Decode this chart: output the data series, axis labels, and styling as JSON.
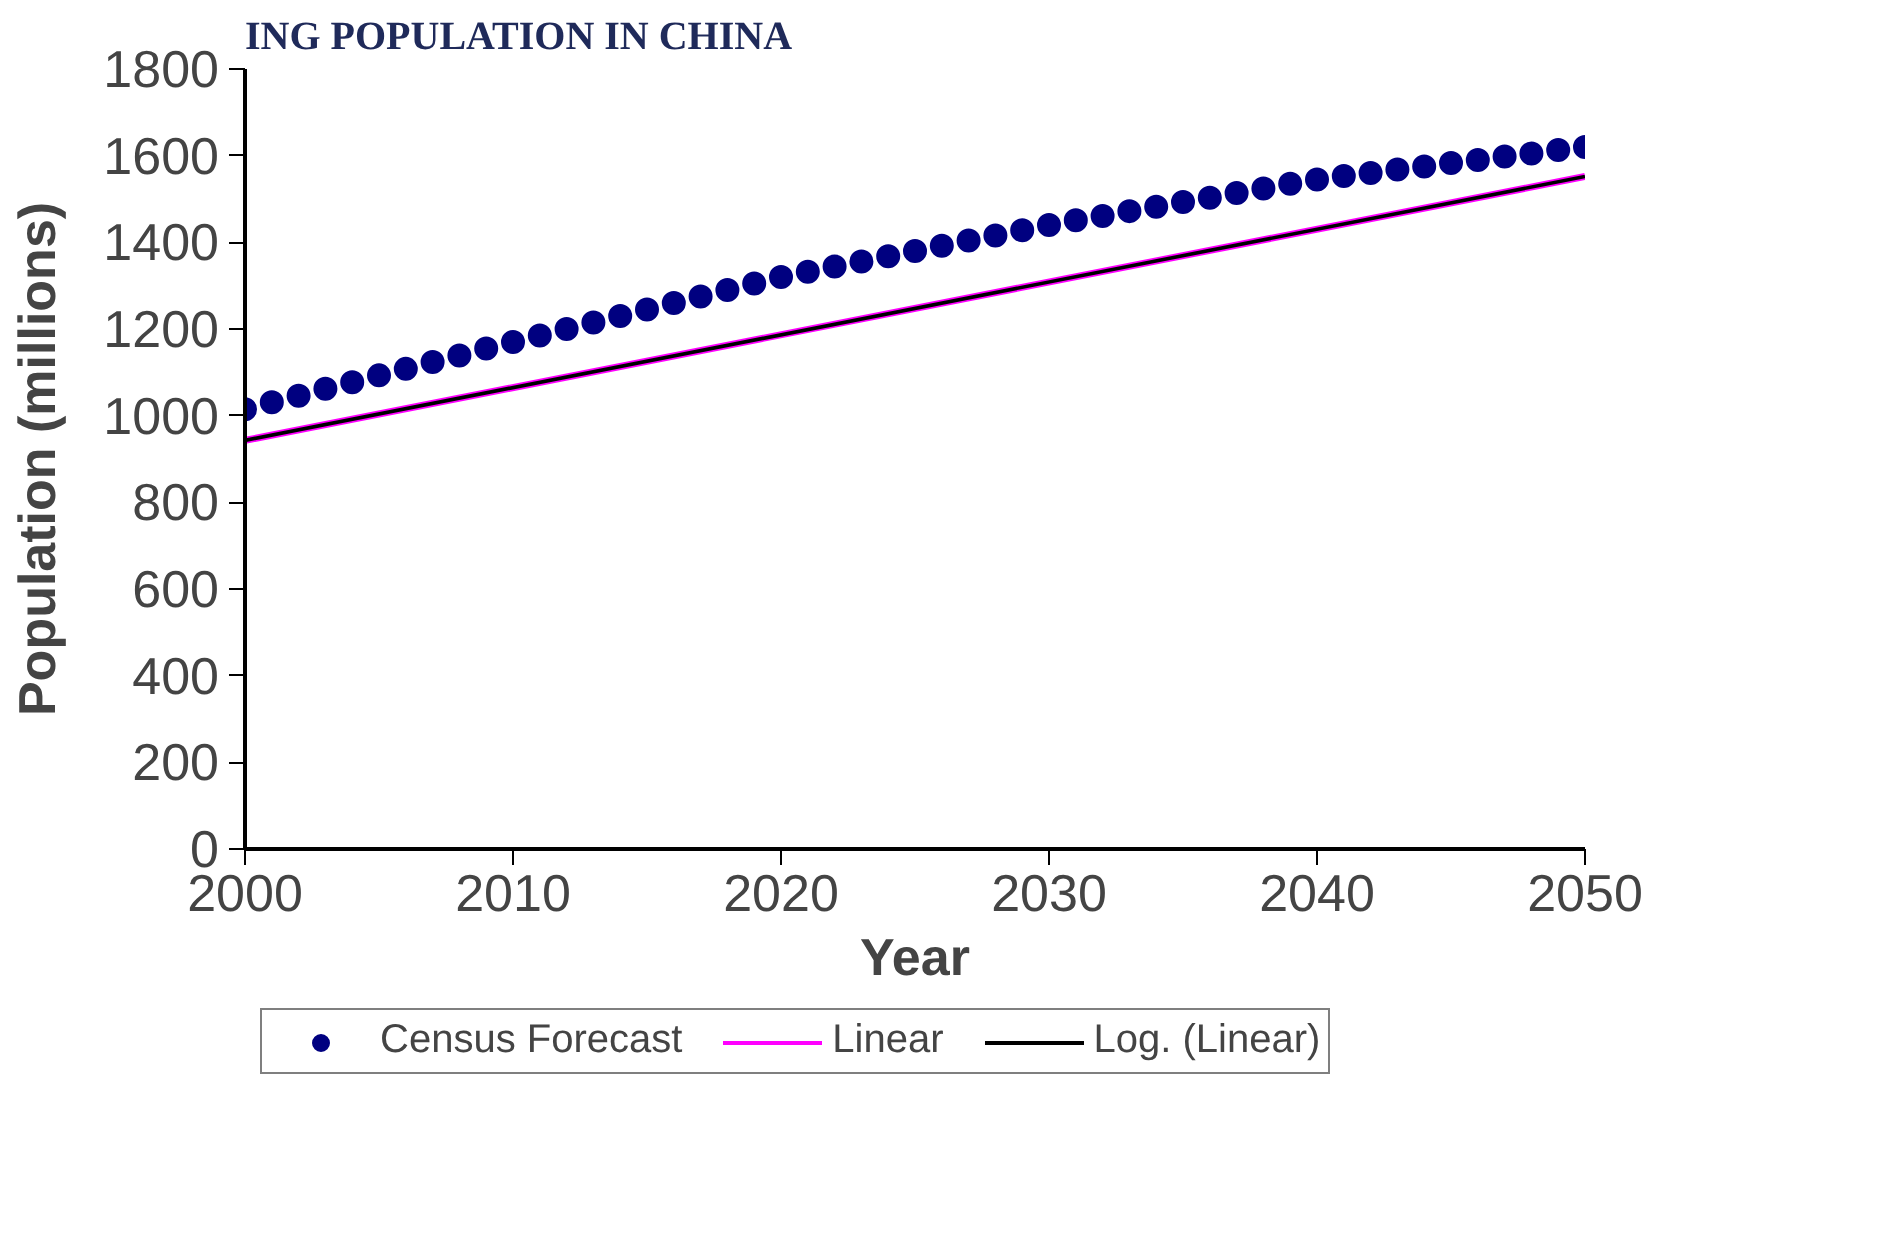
{
  "chart_data": {
    "type": "scatter",
    "title": "ING POPULATION IN CHINA",
    "xlabel": "Year",
    "ylabel": "Population (millions)",
    "xlim": [
      2000,
      2050
    ],
    "xticks": [
      2000,
      2010,
      2020,
      2030,
      2040,
      2050
    ],
    "ylim": [
      0,
      1800
    ],
    "yticks": [
      0,
      200,
      400,
      600,
      800,
      1000,
      1200,
      1400,
      1600,
      1800
    ],
    "grid": false,
    "legend": "bottom",
    "series": [
      {
        "name": "Census Forecast",
        "marker": "circle",
        "color": "#000080",
        "x": [
          2000,
          2001,
          2002,
          2003,
          2004,
          2005,
          2006,
          2007,
          2008,
          2009,
          2010,
          2011,
          2012,
          2013,
          2014,
          2015,
          2016,
          2017,
          2018,
          2019,
          2020,
          2021,
          2022,
          2023,
          2024,
          2025,
          2026,
          2027,
          2028,
          2029,
          2030,
          2031,
          2032,
          2033,
          2034,
          2035,
          2036,
          2037,
          2038,
          2039,
          2040,
          2041,
          2042,
          2043,
          2044,
          2045,
          2046,
          2047,
          2048,
          2049,
          2050
        ],
        "values": [
          1015,
          1031,
          1046,
          1062,
          1077,
          1093,
          1108,
          1124,
          1139,
          1155,
          1170,
          1185,
          1200,
          1215,
          1230,
          1245,
          1260,
          1275,
          1290,
          1305,
          1320,
          1332,
          1344,
          1356,
          1368,
          1380,
          1392,
          1404,
          1416,
          1428,
          1440,
          1451,
          1461,
          1472,
          1482,
          1493,
          1503,
          1514,
          1524,
          1535,
          1545,
          1553,
          1560,
          1568,
          1575,
          1583,
          1590,
          1598,
          1605,
          1613,
          1620
        ]
      },
      {
        "name": "Linear",
        "type": "line",
        "color": "#ff00ff",
        "x": [
          2000,
          2050
        ],
        "values": [
          943,
          1552
        ]
      },
      {
        "name": "Log. (Linear)",
        "type": "line",
        "color": "#000000",
        "x": [
          2000,
          2050
        ],
        "values": [
          943,
          1552
        ]
      }
    ]
  }
}
